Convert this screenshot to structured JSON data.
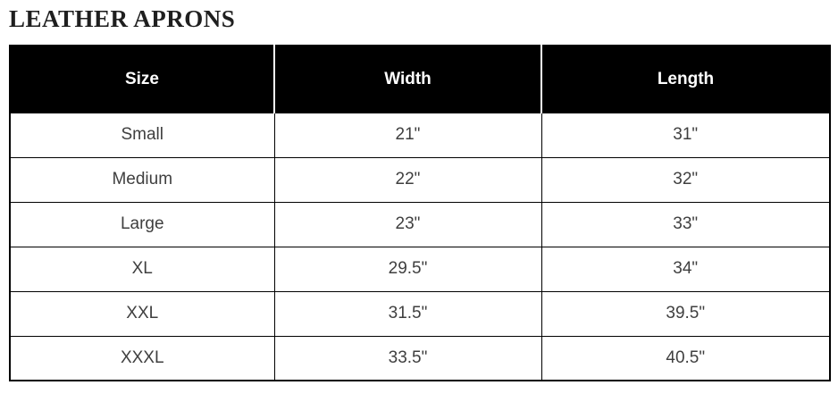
{
  "page_title": "LEATHER APRONS",
  "table": {
    "headers": [
      "Size",
      "Width",
      "Length"
    ],
    "rows": [
      {
        "size": "Small",
        "width": "21\"",
        "length": "31\""
      },
      {
        "size": "Medium",
        "width": "22\"",
        "length": "32\""
      },
      {
        "size": "Large",
        "width": "23\"",
        "length": "33\""
      },
      {
        "size": "XL",
        "width": "29.5\"",
        "length": "34\""
      },
      {
        "size": "XXL",
        "width": "31.5\"",
        "length": "39.5\""
      },
      {
        "size": "XXXL",
        "width": "33.5\"",
        "length": "40.5\""
      }
    ]
  },
  "colors": {
    "header_bg": "#000000",
    "header_text": "#ffffff",
    "body_text": "#3f3f3f",
    "title_text": "#1f1f1f",
    "border": "#000000"
  }
}
